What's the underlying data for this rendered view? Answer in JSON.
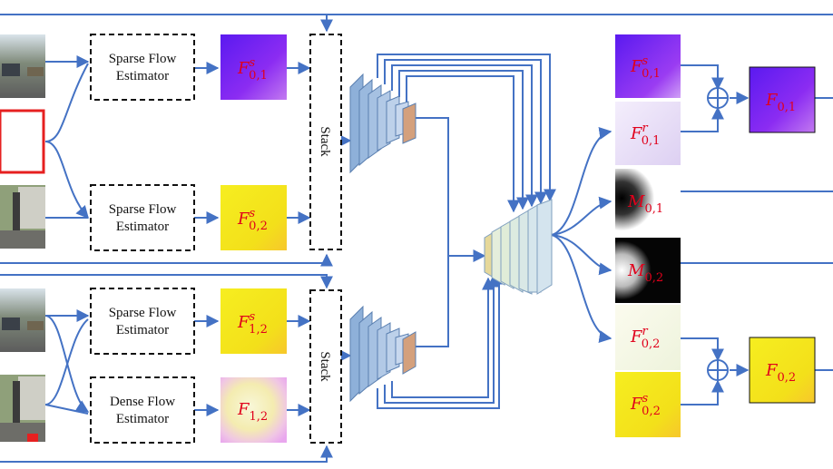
{
  "estimators": [
    {
      "line1": "Sparse Flow",
      "line2": "Estimator"
    },
    {
      "line1": "Sparse Flow",
      "line2": "Estimator"
    },
    {
      "line1": "Sparse Flow",
      "line2": "Estimator"
    },
    {
      "line1": "Dense Flow",
      "line2": "Estimator"
    }
  ],
  "stacks": [
    {
      "label": "Stack"
    },
    {
      "label": "Stack"
    }
  ],
  "flow_maps": [
    {
      "base": "F",
      "sup": "s",
      "sub": "0,1",
      "color": "#7b22f0"
    },
    {
      "base": "F",
      "sup": "s",
      "sub": "0,2",
      "color": "#f3e81a"
    },
    {
      "base": "F",
      "sup": "s",
      "sub": "1,2",
      "color": "#f2ea2a"
    },
    {
      "base": "F",
      "sup": "",
      "sub": "1,2",
      "color": "#f6eec8"
    }
  ],
  "outputs": [
    {
      "base": "F",
      "sup": "s",
      "sub": "0,1",
      "color": "#8a3cf2"
    },
    {
      "base": "F",
      "sup": "r",
      "sub": "0,1",
      "color": "#ece4f8"
    },
    {
      "base": "M",
      "sup": "",
      "sub": "0,1",
      "color": "#ffffff"
    },
    {
      "base": "M",
      "sup": "",
      "sub": "0,2",
      "color": "#111111"
    },
    {
      "base": "F",
      "sup": "r",
      "sub": "0,2",
      "color": "#f7f6e6"
    },
    {
      "base": "F",
      "sup": "s",
      "sub": "0,2",
      "color": "#f3e81a"
    }
  ],
  "final_flows": [
    {
      "base": "F",
      "sub": "0,1",
      "color": "#6a2af0"
    },
    {
      "base": "F",
      "sub": "0,2",
      "color": "#f3e81a"
    }
  ],
  "colors": {
    "arrow": "#4472c4",
    "frame_red": "#e62020",
    "encoder": "#8fb0d8",
    "encoder_tip": "#d4a07c"
  }
}
